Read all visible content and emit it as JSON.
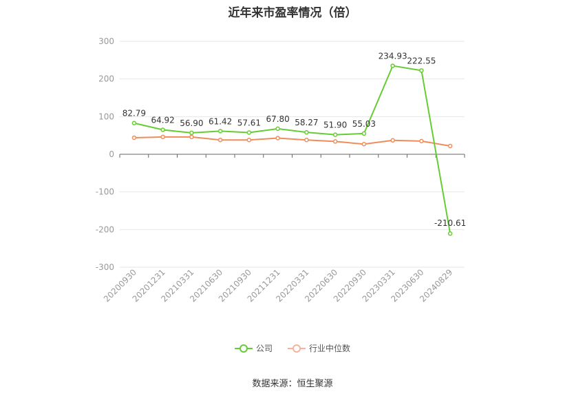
{
  "chart_data": {
    "type": "line",
    "title": "近年来市盈率情况（倍）",
    "categories": [
      "20200930",
      "20201231",
      "20210331",
      "20210630",
      "20210930",
      "20211231",
      "20220331",
      "20220630",
      "20220930",
      "20230331",
      "20230630",
      "20240829"
    ],
    "series": [
      {
        "name": "公司",
        "color": "#66cc33",
        "values": [
          82.79,
          64.92,
          56.9,
          61.42,
          57.61,
          67.8,
          58.27,
          51.9,
          55.03,
          234.93,
          222.55,
          -210.61
        ],
        "labels": [
          "82.79",
          "64.92",
          "56.90",
          "61.42",
          "57.61",
          "67.80",
          "58.27",
          "51.90",
          "55.03",
          "234.93",
          "222.55",
          "-210.61"
        ]
      },
      {
        "name": "行业中位数",
        "color": "#f08c5a",
        "values": [
          44,
          46,
          46,
          38,
          38,
          43,
          38,
          34,
          27,
          37,
          35,
          22
        ]
      }
    ],
    "ylim": [
      -300,
      300
    ],
    "yticks": [
      300,
      200,
      100,
      0,
      -100,
      -200,
      -300
    ],
    "grid": true,
    "legend": "bottom-center"
  },
  "source": "数据来源：恒生聚源"
}
